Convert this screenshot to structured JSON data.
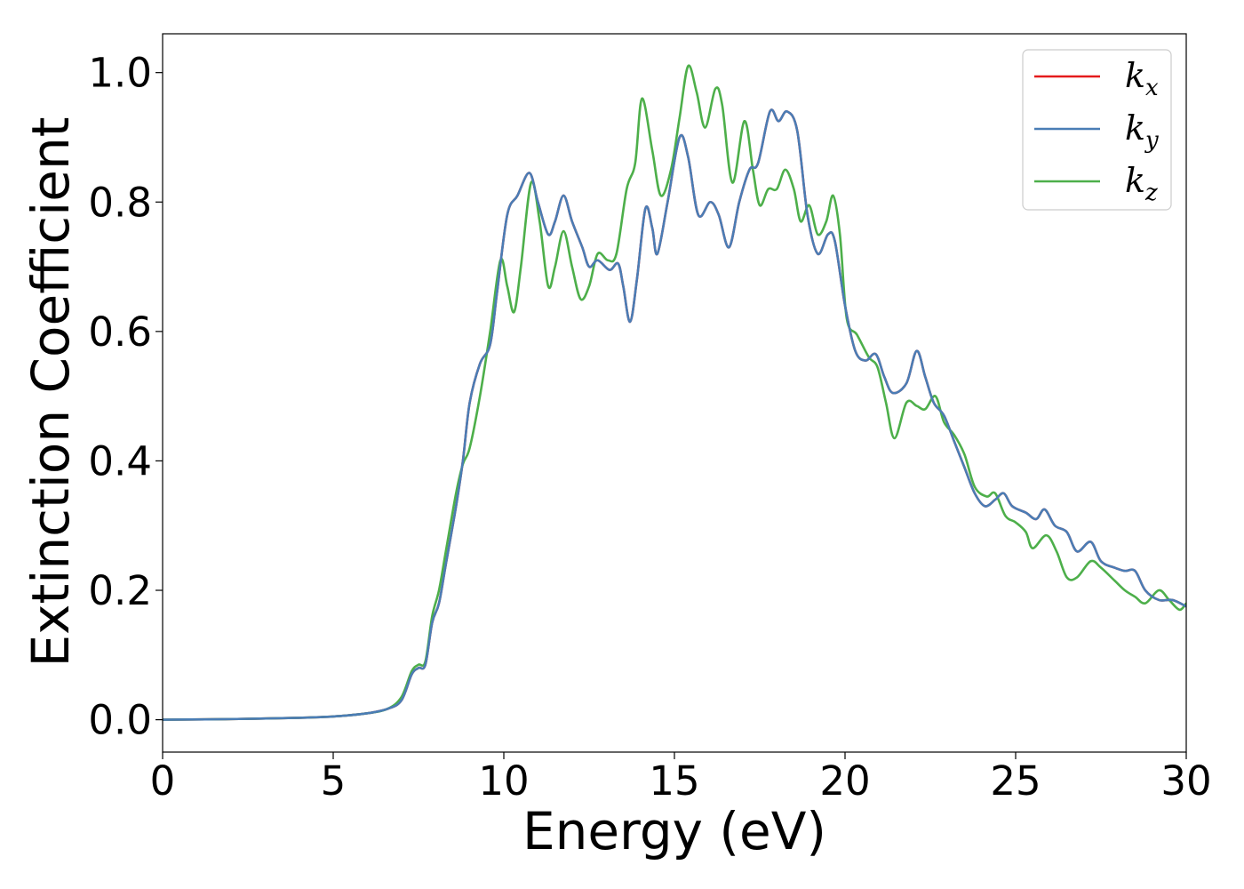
{
  "chart_data": {
    "type": "line",
    "title": "",
    "xlabel": "Energy (eV)",
    "ylabel": "Extinction Coefficient",
    "xlim": [
      0,
      30
    ],
    "ylim": [
      -0.05,
      1.06
    ],
    "xticks": [
      "0",
      "5",
      "10",
      "15",
      "20",
      "25",
      "30"
    ],
    "yticks": [
      "0.0",
      "0.2",
      "0.4",
      "0.6",
      "0.8",
      "1.0"
    ],
    "grid": false,
    "legend_position": "top-right",
    "series": [
      {
        "name": "k",
        "subscript": "x",
        "color": "#e41a1c",
        "points": [
          [
            0,
            0
          ],
          [
            2,
            0.001
          ],
          [
            4,
            0.003
          ],
          [
            5,
            0.005
          ],
          [
            6,
            0.01
          ],
          [
            6.6,
            0.017
          ],
          [
            7,
            0.03
          ],
          [
            7.3,
            0.07
          ],
          [
            7.5,
            0.08
          ],
          [
            7.7,
            0.085
          ],
          [
            7.9,
            0.15
          ],
          [
            8.1,
            0.18
          ],
          [
            8.3,
            0.24
          ],
          [
            8.6,
            0.33
          ],
          [
            8.8,
            0.4
          ],
          [
            9,
            0.49
          ],
          [
            9.3,
            0.55
          ],
          [
            9.6,
            0.58
          ],
          [
            9.8,
            0.66
          ],
          [
            10.1,
            0.78
          ],
          [
            10.4,
            0.81
          ],
          [
            10.75,
            0.845
          ],
          [
            11,
            0.8
          ],
          [
            11.3,
            0.75
          ],
          [
            11.5,
            0.77
          ],
          [
            11.75,
            0.81
          ],
          [
            12,
            0.77
          ],
          [
            12.3,
            0.73
          ],
          [
            12.5,
            0.7
          ],
          [
            12.75,
            0.71
          ],
          [
            13.1,
            0.695
          ],
          [
            13.35,
            0.705
          ],
          [
            13.5,
            0.67
          ],
          [
            13.7,
            0.615
          ],
          [
            13.9,
            0.68
          ],
          [
            14.15,
            0.79
          ],
          [
            14.35,
            0.76
          ],
          [
            14.5,
            0.72
          ],
          [
            14.8,
            0.8
          ],
          [
            15.15,
            0.9
          ],
          [
            15.4,
            0.87
          ],
          [
            15.7,
            0.78
          ],
          [
            16.05,
            0.8
          ],
          [
            16.3,
            0.78
          ],
          [
            16.6,
            0.73
          ],
          [
            16.9,
            0.8
          ],
          [
            17.2,
            0.85
          ],
          [
            17.45,
            0.86
          ],
          [
            17.8,
            0.94
          ],
          [
            18.05,
            0.925
          ],
          [
            18.3,
            0.94
          ],
          [
            18.6,
            0.91
          ],
          [
            18.9,
            0.78
          ],
          [
            19.2,
            0.72
          ],
          [
            19.5,
            0.75
          ],
          [
            19.7,
            0.74
          ],
          [
            20,
            0.64
          ],
          [
            20.3,
            0.57
          ],
          [
            20.6,
            0.555
          ],
          [
            20.9,
            0.565
          ],
          [
            21.15,
            0.53
          ],
          [
            21.4,
            0.505
          ],
          [
            21.8,
            0.52
          ],
          [
            22.1,
            0.57
          ],
          [
            22.35,
            0.53
          ],
          [
            22.6,
            0.49
          ],
          [
            22.9,
            0.47
          ],
          [
            23.2,
            0.43
          ],
          [
            23.5,
            0.39
          ],
          [
            23.8,
            0.35
          ],
          [
            24.1,
            0.33
          ],
          [
            24.4,
            0.34
          ],
          [
            24.65,
            0.35
          ],
          [
            24.9,
            0.33
          ],
          [
            25.3,
            0.32
          ],
          [
            25.6,
            0.31
          ],
          [
            25.85,
            0.325
          ],
          [
            26.15,
            0.3
          ],
          [
            26.5,
            0.29
          ],
          [
            26.8,
            0.26
          ],
          [
            27.2,
            0.275
          ],
          [
            27.5,
            0.245
          ],
          [
            27.9,
            0.235
          ],
          [
            28.2,
            0.23
          ],
          [
            28.5,
            0.23
          ],
          [
            28.8,
            0.2
          ],
          [
            29.2,
            0.185
          ],
          [
            29.6,
            0.185
          ],
          [
            30,
            0.175
          ]
        ]
      },
      {
        "name": "k",
        "subscript": "y",
        "color": "#4a7db5",
        "points": [
          [
            0,
            0
          ],
          [
            2,
            0.001
          ],
          [
            4,
            0.003
          ],
          [
            5,
            0.005
          ],
          [
            6,
            0.01
          ],
          [
            6.6,
            0.017
          ],
          [
            7,
            0.03
          ],
          [
            7.3,
            0.07
          ],
          [
            7.5,
            0.08
          ],
          [
            7.7,
            0.085
          ],
          [
            7.9,
            0.15
          ],
          [
            8.1,
            0.18
          ],
          [
            8.3,
            0.24
          ],
          [
            8.6,
            0.33
          ],
          [
            8.8,
            0.4
          ],
          [
            9,
            0.49
          ],
          [
            9.3,
            0.55
          ],
          [
            9.6,
            0.58
          ],
          [
            9.8,
            0.66
          ],
          [
            10.1,
            0.78
          ],
          [
            10.4,
            0.81
          ],
          [
            10.75,
            0.845
          ],
          [
            11,
            0.8
          ],
          [
            11.3,
            0.75
          ],
          [
            11.5,
            0.77
          ],
          [
            11.75,
            0.81
          ],
          [
            12,
            0.77
          ],
          [
            12.3,
            0.73
          ],
          [
            12.5,
            0.7
          ],
          [
            12.75,
            0.71
          ],
          [
            13.1,
            0.695
          ],
          [
            13.35,
            0.705
          ],
          [
            13.5,
            0.67
          ],
          [
            13.7,
            0.615
          ],
          [
            13.9,
            0.68
          ],
          [
            14.15,
            0.79
          ],
          [
            14.35,
            0.76
          ],
          [
            14.5,
            0.72
          ],
          [
            14.8,
            0.8
          ],
          [
            15.15,
            0.9
          ],
          [
            15.4,
            0.87
          ],
          [
            15.7,
            0.78
          ],
          [
            16.05,
            0.8
          ],
          [
            16.3,
            0.78
          ],
          [
            16.6,
            0.73
          ],
          [
            16.9,
            0.8
          ],
          [
            17.2,
            0.85
          ],
          [
            17.45,
            0.86
          ],
          [
            17.8,
            0.94
          ],
          [
            18.05,
            0.925
          ],
          [
            18.3,
            0.94
          ],
          [
            18.6,
            0.91
          ],
          [
            18.9,
            0.78
          ],
          [
            19.2,
            0.72
          ],
          [
            19.5,
            0.75
          ],
          [
            19.7,
            0.74
          ],
          [
            20,
            0.64
          ],
          [
            20.3,
            0.57
          ],
          [
            20.6,
            0.555
          ],
          [
            20.9,
            0.565
          ],
          [
            21.15,
            0.53
          ],
          [
            21.4,
            0.505
          ],
          [
            21.8,
            0.52
          ],
          [
            22.1,
            0.57
          ],
          [
            22.35,
            0.53
          ],
          [
            22.6,
            0.49
          ],
          [
            22.9,
            0.47
          ],
          [
            23.2,
            0.43
          ],
          [
            23.5,
            0.39
          ],
          [
            23.8,
            0.35
          ],
          [
            24.1,
            0.33
          ],
          [
            24.4,
            0.34
          ],
          [
            24.65,
            0.35
          ],
          [
            24.9,
            0.33
          ],
          [
            25.3,
            0.32
          ],
          [
            25.6,
            0.31
          ],
          [
            25.85,
            0.325
          ],
          [
            26.15,
            0.3
          ],
          [
            26.5,
            0.29
          ],
          [
            26.8,
            0.26
          ],
          [
            27.2,
            0.275
          ],
          [
            27.5,
            0.245
          ],
          [
            27.9,
            0.235
          ],
          [
            28.2,
            0.23
          ],
          [
            28.5,
            0.23
          ],
          [
            28.8,
            0.2
          ],
          [
            29.2,
            0.185
          ],
          [
            29.6,
            0.185
          ],
          [
            30,
            0.175
          ]
        ]
      },
      {
        "name": "k",
        "subscript": "z",
        "color": "#4daf4a",
        "points": [
          [
            0,
            0
          ],
          [
            2,
            0.001
          ],
          [
            4,
            0.003
          ],
          [
            5,
            0.005
          ],
          [
            6,
            0.01
          ],
          [
            6.6,
            0.017
          ],
          [
            7,
            0.035
          ],
          [
            7.3,
            0.075
          ],
          [
            7.5,
            0.085
          ],
          [
            7.7,
            0.09
          ],
          [
            7.9,
            0.16
          ],
          [
            8.1,
            0.2
          ],
          [
            8.3,
            0.26
          ],
          [
            8.6,
            0.35
          ],
          [
            8.8,
            0.395
          ],
          [
            9,
            0.42
          ],
          [
            9.3,
            0.5
          ],
          [
            9.6,
            0.6
          ],
          [
            9.9,
            0.71
          ],
          [
            10.1,
            0.67
          ],
          [
            10.3,
            0.63
          ],
          [
            10.5,
            0.7
          ],
          [
            10.8,
            0.83
          ],
          [
            11.05,
            0.77
          ],
          [
            11.3,
            0.67
          ],
          [
            11.5,
            0.7
          ],
          [
            11.75,
            0.755
          ],
          [
            12,
            0.7
          ],
          [
            12.25,
            0.65
          ],
          [
            12.5,
            0.67
          ],
          [
            12.75,
            0.72
          ],
          [
            13.05,
            0.71
          ],
          [
            13.3,
            0.72
          ],
          [
            13.6,
            0.82
          ],
          [
            13.85,
            0.86
          ],
          [
            14.05,
            0.96
          ],
          [
            14.35,
            0.88
          ],
          [
            14.6,
            0.81
          ],
          [
            14.9,
            0.85
          ],
          [
            15.15,
            0.93
          ],
          [
            15.4,
            1.01
          ],
          [
            15.65,
            0.97
          ],
          [
            15.9,
            0.915
          ],
          [
            16.2,
            0.975
          ],
          [
            16.4,
            0.95
          ],
          [
            16.7,
            0.83
          ],
          [
            17.05,
            0.925
          ],
          [
            17.3,
            0.85
          ],
          [
            17.5,
            0.795
          ],
          [
            17.75,
            0.82
          ],
          [
            18,
            0.82
          ],
          [
            18.25,
            0.85
          ],
          [
            18.5,
            0.82
          ],
          [
            18.7,
            0.77
          ],
          [
            18.95,
            0.795
          ],
          [
            19.2,
            0.75
          ],
          [
            19.45,
            0.77
          ],
          [
            19.65,
            0.81
          ],
          [
            19.85,
            0.75
          ],
          [
            20.05,
            0.62
          ],
          [
            20.35,
            0.595
          ],
          [
            20.7,
            0.56
          ],
          [
            20.95,
            0.545
          ],
          [
            21.2,
            0.49
          ],
          [
            21.45,
            0.435
          ],
          [
            21.8,
            0.49
          ],
          [
            22.1,
            0.485
          ],
          [
            22.35,
            0.48
          ],
          [
            22.65,
            0.5
          ],
          [
            22.9,
            0.46
          ],
          [
            23.2,
            0.44
          ],
          [
            23.5,
            0.41
          ],
          [
            23.8,
            0.36
          ],
          [
            24.15,
            0.345
          ],
          [
            24.4,
            0.35
          ],
          [
            24.7,
            0.315
          ],
          [
            25,
            0.305
          ],
          [
            25.3,
            0.29
          ],
          [
            25.5,
            0.265
          ],
          [
            25.9,
            0.285
          ],
          [
            26.2,
            0.26
          ],
          [
            26.5,
            0.22
          ],
          [
            26.8,
            0.22
          ],
          [
            27.2,
            0.245
          ],
          [
            27.5,
            0.235
          ],
          [
            27.9,
            0.215
          ],
          [
            28.2,
            0.2
          ],
          [
            28.5,
            0.19
          ],
          [
            28.8,
            0.18
          ],
          [
            29.2,
            0.2
          ],
          [
            29.5,
            0.185
          ],
          [
            29.8,
            0.17
          ],
          [
            30,
            0.18
          ]
        ]
      }
    ]
  }
}
